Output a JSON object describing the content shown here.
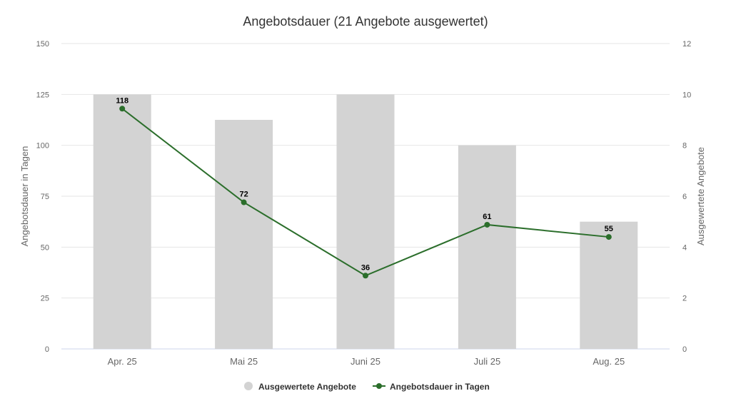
{
  "chart": {
    "title": "Angebotsdauer (21 Angebote ausgewertet)",
    "left_axis_title": "Angebotsdauer in Tagen",
    "right_axis_title": "Ausgewertete Angebote",
    "left_ticks": [
      "0",
      "25",
      "50",
      "75",
      "100",
      "125",
      "150"
    ],
    "right_ticks": [
      "0",
      "2",
      "4",
      "6",
      "8",
      "10",
      "12"
    ],
    "categories": [
      "Apr. 25",
      "Mai 25",
      "Juni 25",
      "Juli 25",
      "Aug. 25"
    ],
    "legend": [
      "Ausgewertete Angebote",
      "Angebotsdauer in Tagen"
    ],
    "colors": {
      "bar": "#d3d3d3",
      "line": "#2b6e2b",
      "grid": "#e6e6e6",
      "axis": "#ccd6eb"
    }
  },
  "chart_data": {
    "type": "bar",
    "title": "Angebotsdauer (21 Angebote ausgewertet)",
    "categories": [
      "Apr. 25",
      "Mai 25",
      "Juni 25",
      "Juli 25",
      "Aug. 25"
    ],
    "series": [
      {
        "name": "Ausgewertete Angebote",
        "type": "bar",
        "axis": "right",
        "values": [
          10,
          9,
          10,
          8,
          5
        ],
        "color": "#d3d3d3"
      },
      {
        "name": "Angebotsdauer in Tagen",
        "type": "line",
        "axis": "left",
        "values": [
          118,
          72,
          36,
          61,
          55
        ],
        "color": "#2b6e2b",
        "data_labels": true
      }
    ],
    "xlabel": "",
    "ylabel": "Angebotsdauer in Tagen",
    "ylabel_right": "Ausgewertete Angebote",
    "ylim": [
      0,
      150
    ],
    "ylim_right": [
      0,
      12
    ],
    "yticks": [
      0,
      25,
      50,
      75,
      100,
      125,
      150
    ],
    "yticks_right": [
      0,
      2,
      4,
      6,
      8,
      10,
      12
    ],
    "grid": true,
    "legend_position": "bottom"
  }
}
